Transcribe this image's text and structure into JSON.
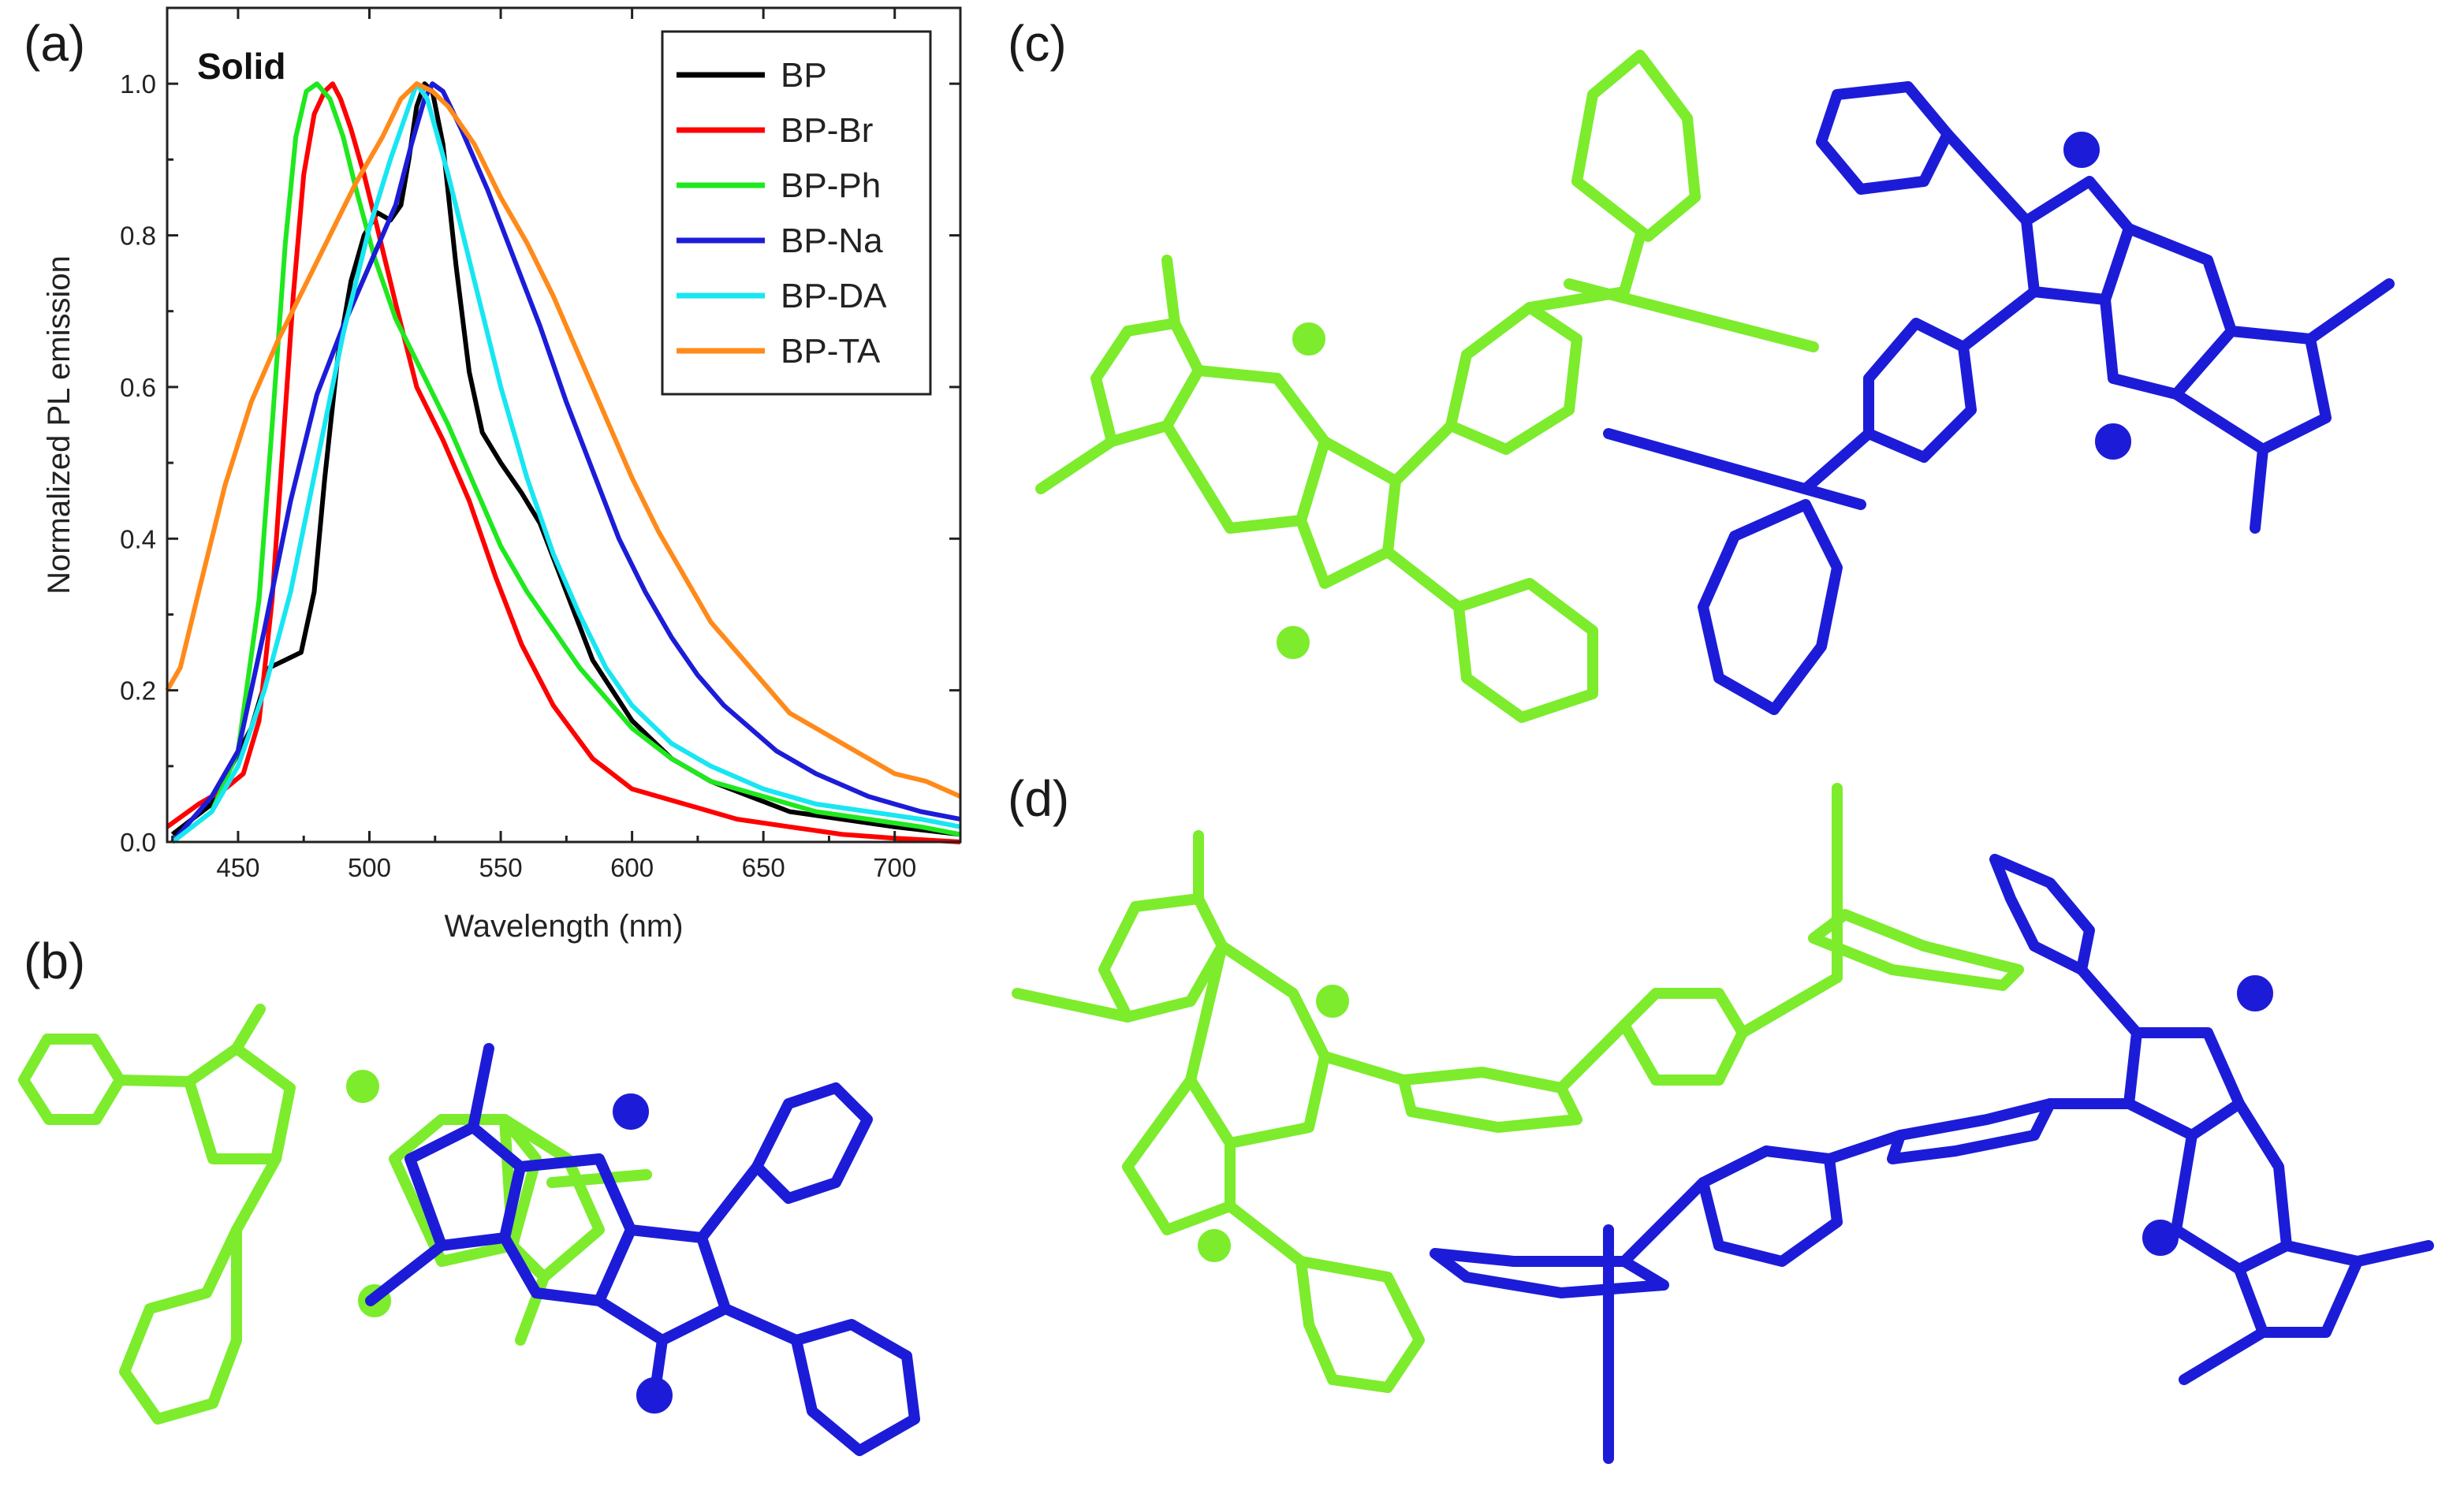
{
  "panels": {
    "a": "(a)",
    "b": "(b)",
    "c": "(c)",
    "d": "(d)"
  },
  "colors": {
    "green_molecule": "#7cec2c",
    "blue_molecule": "#1c1cd8"
  },
  "chart_data": {
    "type": "line",
    "xlabel": "Wavelength (nm)",
    "ylabel": "Normalized PL emission",
    "annotation": "Solid",
    "xlim": [
      423,
      725
    ],
    "ylim": [
      0,
      1.1
    ],
    "xticks": [
      450,
      500,
      550,
      600,
      650,
      700
    ],
    "yticks": [
      0.0,
      0.2,
      0.4,
      0.6,
      0.8,
      1.0
    ],
    "ytick_labels": [
      "0.0",
      "0.2",
      "0.4",
      "0.6",
      "0.8",
      "1.0"
    ],
    "grid": false,
    "legend_position": "top-right",
    "series": [
      {
        "name": "BP",
        "color": "#000000",
        "points": [
          [
            425,
            0.01
          ],
          [
            440,
            0.05
          ],
          [
            455,
            0.15
          ],
          [
            462,
            0.23
          ],
          [
            468,
            0.24
          ],
          [
            474,
            0.25
          ],
          [
            479,
            0.33
          ],
          [
            483,
            0.48
          ],
          [
            488,
            0.64
          ],
          [
            493,
            0.74
          ],
          [
            498,
            0.8
          ],
          [
            503,
            0.83
          ],
          [
            508,
            0.82
          ],
          [
            512,
            0.84
          ],
          [
            515,
            0.9
          ],
          [
            518,
            0.97
          ],
          [
            521,
            1.0
          ],
          [
            524,
            0.99
          ],
          [
            528,
            0.92
          ],
          [
            533,
            0.76
          ],
          [
            538,
            0.62
          ],
          [
            543,
            0.54
          ],
          [
            550,
            0.5
          ],
          [
            558,
            0.46
          ],
          [
            565,
            0.42
          ],
          [
            575,
            0.33
          ],
          [
            585,
            0.24
          ],
          [
            600,
            0.16
          ],
          [
            615,
            0.11
          ],
          [
            630,
            0.08
          ],
          [
            645,
            0.06
          ],
          [
            660,
            0.04
          ],
          [
            680,
            0.03
          ],
          [
            700,
            0.02
          ],
          [
            725,
            0.01
          ]
        ]
      },
      {
        "name": "BP-Br",
        "color": "#ff0000",
        "points": [
          [
            423,
            0.02
          ],
          [
            435,
            0.05
          ],
          [
            445,
            0.07
          ],
          [
            452,
            0.09
          ],
          [
            458,
            0.16
          ],
          [
            463,
            0.32
          ],
          [
            467,
            0.52
          ],
          [
            471,
            0.72
          ],
          [
            475,
            0.88
          ],
          [
            479,
            0.96
          ],
          [
            483,
            0.99
          ],
          [
            486,
            1.0
          ],
          [
            489,
            0.98
          ],
          [
            493,
            0.94
          ],
          [
            498,
            0.88
          ],
          [
            503,
            0.81
          ],
          [
            510,
            0.71
          ],
          [
            518,
            0.6
          ],
          [
            528,
            0.53
          ],
          [
            538,
            0.45
          ],
          [
            548,
            0.35
          ],
          [
            558,
            0.26
          ],
          [
            570,
            0.18
          ],
          [
            585,
            0.11
          ],
          [
            600,
            0.07
          ],
          [
            620,
            0.05
          ],
          [
            640,
            0.03
          ],
          [
            660,
            0.02
          ],
          [
            680,
            0.01
          ],
          [
            700,
            0.005
          ],
          [
            725,
            0.0
          ]
        ]
      },
      {
        "name": "BP-Ph",
        "color": "#1ee81e",
        "points": [
          [
            425,
            0.0
          ],
          [
            440,
            0.04
          ],
          [
            450,
            0.12
          ],
          [
            458,
            0.32
          ],
          [
            463,
            0.55
          ],
          [
            468,
            0.79
          ],
          [
            472,
            0.93
          ],
          [
            476,
            0.99
          ],
          [
            480,
            1.0
          ],
          [
            485,
            0.98
          ],
          [
            490,
            0.93
          ],
          [
            495,
            0.86
          ],
          [
            502,
            0.77
          ],
          [
            510,
            0.69
          ],
          [
            520,
            0.62
          ],
          [
            530,
            0.55
          ],
          [
            540,
            0.47
          ],
          [
            550,
            0.39
          ],
          [
            560,
            0.33
          ],
          [
            570,
            0.28
          ],
          [
            580,
            0.23
          ],
          [
            590,
            0.19
          ],
          [
            600,
            0.15
          ],
          [
            615,
            0.11
          ],
          [
            630,
            0.08
          ],
          [
            650,
            0.06
          ],
          [
            670,
            0.04
          ],
          [
            690,
            0.03
          ],
          [
            710,
            0.02
          ],
          [
            725,
            0.01
          ]
        ]
      },
      {
        "name": "BP-Na",
        "color": "#1c1cd8",
        "points": [
          [
            425,
            0.0
          ],
          [
            440,
            0.06
          ],
          [
            450,
            0.12
          ],
          [
            460,
            0.28
          ],
          [
            470,
            0.45
          ],
          [
            480,
            0.59
          ],
          [
            490,
            0.68
          ],
          [
            500,
            0.76
          ],
          [
            510,
            0.84
          ],
          [
            516,
            0.92
          ],
          [
            521,
            0.98
          ],
          [
            524,
            1.0
          ],
          [
            528,
            0.99
          ],
          [
            535,
            0.94
          ],
          [
            545,
            0.86
          ],
          [
            555,
            0.77
          ],
          [
            565,
            0.68
          ],
          [
            575,
            0.58
          ],
          [
            585,
            0.49
          ],
          [
            595,
            0.4
          ],
          [
            605,
            0.33
          ],
          [
            615,
            0.27
          ],
          [
            625,
            0.22
          ],
          [
            635,
            0.18
          ],
          [
            645,
            0.15
          ],
          [
            655,
            0.12
          ],
          [
            670,
            0.09
          ],
          [
            690,
            0.06
          ],
          [
            710,
            0.04
          ],
          [
            725,
            0.03
          ]
        ]
      },
      {
        "name": "BP-DA",
        "color": "#18e6f2",
        "points": [
          [
            425,
            0.0
          ],
          [
            440,
            0.04
          ],
          [
            450,
            0.1
          ],
          [
            460,
            0.2
          ],
          [
            470,
            0.33
          ],
          [
            480,
            0.5
          ],
          [
            490,
            0.67
          ],
          [
            500,
            0.81
          ],
          [
            508,
            0.9
          ],
          [
            514,
            0.96
          ],
          [
            518,
            1.0
          ],
          [
            522,
            0.98
          ],
          [
            530,
            0.88
          ],
          [
            540,
            0.74
          ],
          [
            550,
            0.6
          ],
          [
            560,
            0.48
          ],
          [
            570,
            0.38
          ],
          [
            580,
            0.3
          ],
          [
            590,
            0.23
          ],
          [
            600,
            0.18
          ],
          [
            615,
            0.13
          ],
          [
            630,
            0.1
          ],
          [
            650,
            0.07
          ],
          [
            670,
            0.05
          ],
          [
            690,
            0.04
          ],
          [
            710,
            0.03
          ],
          [
            725,
            0.02
          ]
        ]
      },
      {
        "name": "BP-TA",
        "color": "#ff8a1a",
        "points": [
          [
            423,
            0.2
          ],
          [
            428,
            0.23
          ],
          [
            435,
            0.33
          ],
          [
            445,
            0.47
          ],
          [
            455,
            0.58
          ],
          [
            465,
            0.66
          ],
          [
            475,
            0.73
          ],
          [
            485,
            0.8
          ],
          [
            495,
            0.87
          ],
          [
            505,
            0.93
          ],
          [
            512,
            0.98
          ],
          [
            518,
            1.0
          ],
          [
            524,
            0.99
          ],
          [
            530,
            0.97
          ],
          [
            540,
            0.92
          ],
          [
            550,
            0.85
          ],
          [
            560,
            0.79
          ],
          [
            570,
            0.72
          ],
          [
            580,
            0.64
          ],
          [
            590,
            0.56
          ],
          [
            600,
            0.48
          ],
          [
            610,
            0.41
          ],
          [
            620,
            0.35
          ],
          [
            630,
            0.29
          ],
          [
            640,
            0.25
          ],
          [
            650,
            0.21
          ],
          [
            660,
            0.17
          ],
          [
            670,
            0.15
          ],
          [
            680,
            0.13
          ],
          [
            690,
            0.11
          ],
          [
            700,
            0.09
          ],
          [
            712,
            0.08
          ],
          [
            725,
            0.06
          ]
        ]
      }
    ]
  }
}
